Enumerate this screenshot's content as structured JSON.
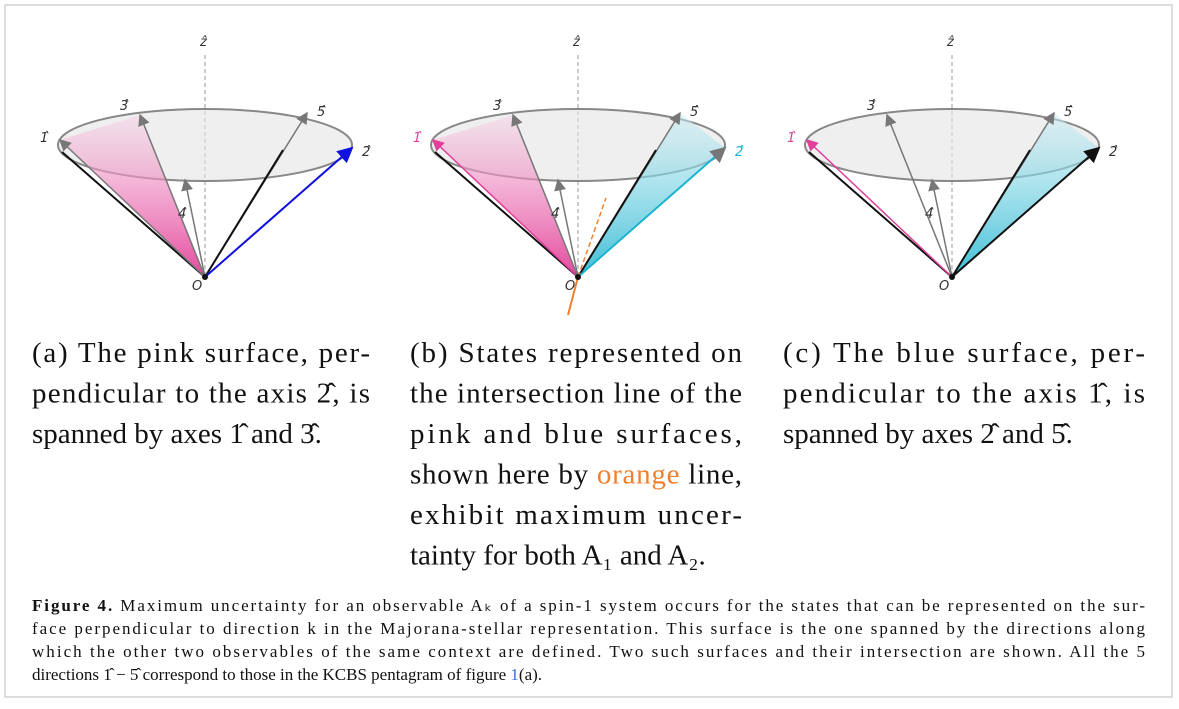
{
  "diagram_labels": {
    "z": "ẑ",
    "d1": "1̂",
    "d2": "2̂",
    "d3": "3̂",
    "d4": "4̂",
    "d5": "5̂",
    "origin": "O"
  },
  "panels": [
    {
      "caption_lines": [
        "(a) The pink surface, per-",
        "pendicular to the axis 2̂, is",
        "spanned by axes 1̂ and 3̂."
      ]
    },
    {
      "caption_lines": [
        "(b) States represented on",
        "the intersection line of the",
        "pink and blue surfaces,",
        {
          "before": "shown here by ",
          "highlight": "orange",
          "after": " line,"
        },
        "exhibit maximum uncer-",
        "tainty for both A₁ and A₂."
      ]
    },
    {
      "caption_lines": [
        "(c) The blue surface, per-",
        "pendicular to the axis 1̂, is",
        "spanned by axes 2̂ and 5̂."
      ]
    }
  ],
  "figure_caption": {
    "label": "Figure 4.",
    "lines": [
      " Maximum uncertainty for an observable Aₖ of a spin-1 system occurs for the states that can be represented on the sur-",
      "face perpendicular to direction k in the Majorana-stellar representation. This surface is the one spanned by the directions along",
      "which the other two observables of the same context are defined. Two such surfaces and their intersection are shown. All the 5"
    ],
    "last_line": {
      "before": "directions 1̂ − 5̂ correspond to those in the KCBS pentagram of figure ",
      "link": "1",
      "after": "(a)."
    }
  }
}
